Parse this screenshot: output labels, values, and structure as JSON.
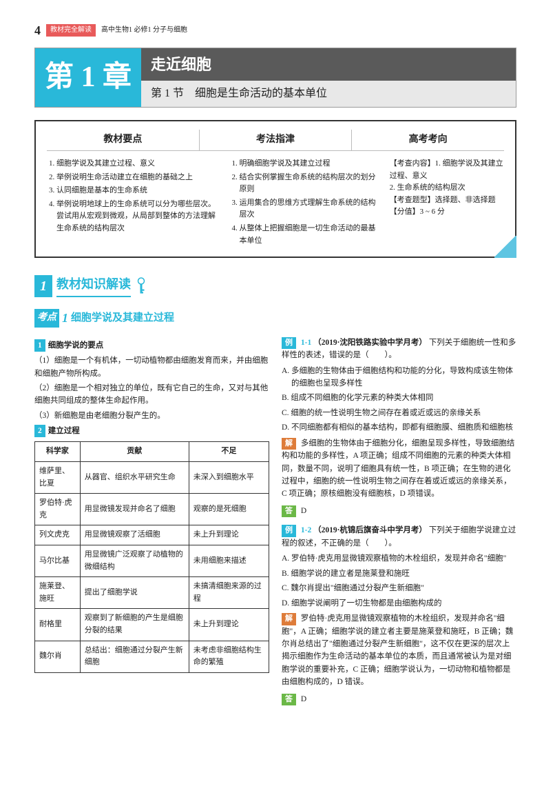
{
  "page_number": "4",
  "header": {
    "tag1": "教材完全解读",
    "tag2": "高中生物1 必修1 分子与细胞"
  },
  "chapter": {
    "num": "第 1 章",
    "title": "走近细胞",
    "section": "第 1 节　细胞是生命活动的基本单位"
  },
  "guide": {
    "cols": [
      "教材要点",
      "考法指津",
      "高考考向"
    ],
    "c1": [
      "细胞学说及其建立过程、意义",
      "举例说明生命活动建立在细胞的基础之上",
      "认同细胞是基本的生命系统",
      "举例说明地球上的生命系统可以分为哪些层次。尝试用从宏观到微观，从局部到整体的方法理解生命系统的结构层次"
    ],
    "c2": [
      "明确细胞学说及其建立过程",
      "结合实例掌握生命系统的结构层次的划分原则",
      "运用集合的思维方式理解生命系统的结构层次",
      "从整体上把握细胞是一切生命活动的最基本单位"
    ],
    "c3": [
      "【考查内容】1. 细胞学说及其建立过程、意义",
      "2. 生命系统的结构层次",
      "【考查题型】选择题、非选择题",
      "【分值】3 ~ 6 分"
    ]
  },
  "sec1": {
    "num": "1",
    "title": "教材知识解读"
  },
  "kao": {
    "label": "考点",
    "num": "1",
    "title": "细胞学说及其建立过程"
  },
  "left": {
    "h1": {
      "n": "1",
      "t": "细胞学说的要点"
    },
    "p1": "（1）细胞是一个有机体，一切动植物都由细胞发育而来，并由细胞和细胞产物所构成。",
    "p2": "（2）细胞是一个相对独立的单位，既有它自己的生命，又对与其他细胞共同组成的整体生命起作用。",
    "p3": "（3）新细胞是由老细胞分裂产生的。",
    "h2": {
      "n": "2",
      "t": "建立过程"
    },
    "tbl": {
      "head": [
        "科学家",
        "贡献",
        "不足"
      ],
      "rows": [
        [
          "维萨里、比夏",
          "从器官、组织水平研究生命",
          "未深入到细胞水平"
        ],
        [
          "罗伯特·虎克",
          "用显微镜发现并命名了细胞",
          "观察的是死细胞"
        ],
        [
          "列文虎克",
          "用显微镜观察了活细胞",
          "未上升到理论"
        ],
        [
          "马尔比基",
          "用显微镜广泛观察了动植物的微细结构",
          "未用细胞来描述"
        ],
        [
          "施莱登、施旺",
          "提出了细胞学说",
          "未搞清细胞来源的过程"
        ],
        [
          "耐格里",
          "观察到了新细胞的产生是细胞分裂的结果",
          "未上升到理论"
        ],
        [
          "魏尔肖",
          "总结出：细胞通过分裂产生新细胞",
          "未考虑非细胞结构生命的繁殖"
        ]
      ]
    }
  },
  "right": {
    "ex1": {
      "label": "例",
      "num": "1-1",
      "src": "（2019·沈阳铁路实验中学月考）",
      "q": "下列关于细胞统一性和多样性的表述，错误的是（　　）。",
      "opts": [
        "A. 多细胞的生物体由于细胞结构和功能的分化，导致构成该生物体的细胞也呈现多样性",
        "B. 组成不同细胞的化学元素的种类大体相同",
        "C. 细胞的统一性说明生物之间存在着或近或远的亲缘关系",
        "D. 不同细胞都有相似的基本结构，即都有细胞膜、细胞质和细胞核"
      ],
      "sol": "多细胞的生物体由于细胞分化，细胞呈现多样性，导致细胞结构和功能的多样性，A 项正确；组成不同细胞的元素的种类大体相同，数量不同，说明了细胞具有统一性，B 项正确；在生物的进化过程中，细胞的统一性说明生物之间存在着或近或远的亲缘关系，C 项正确；原核细胞没有细胞核，D 项错误。",
      "ans": "D"
    },
    "ex2": {
      "label": "例",
      "num": "1-2",
      "src": "（2019·杭锦后旗奋斗中学月考）",
      "q": "下列关于细胞学说建立过程的叙述，不正确的是（　　）。",
      "opts": [
        "A. 罗伯特·虎克用显微镜观察植物的木栓组织，发现并命名\"细胞\"",
        "B. 细胞学说的建立者是施莱登和施旺",
        "C. 魏尔肖提出\"细胞通过分裂产生新细胞\"",
        "D. 细胞学说阐明了一切生物都是由细胞构成的"
      ],
      "sol": "罗伯特·虎克用显微镜观察植物的木栓组织，发现并命名\"细胞\"，A 正确；细胞学说的建立者主要是施莱登和施旺，B 正确；魏尔肖总结出了\"细胞通过分裂产生新细胞\"，这不仅在更深的层次上揭示细胞作为生命活动的基本单位的本质，而且通常被认为是对细胞学说的重要补充，C 正确；细胞学说认为，一切动物和植物都是由细胞构成的，D 错误。",
      "ans": "D"
    },
    "solLabel": "解",
    "ansLabel": "答"
  },
  "colors": {
    "accent": "#29b8d9",
    "orange": "#de7c3a",
    "green": "#6bb847"
  }
}
